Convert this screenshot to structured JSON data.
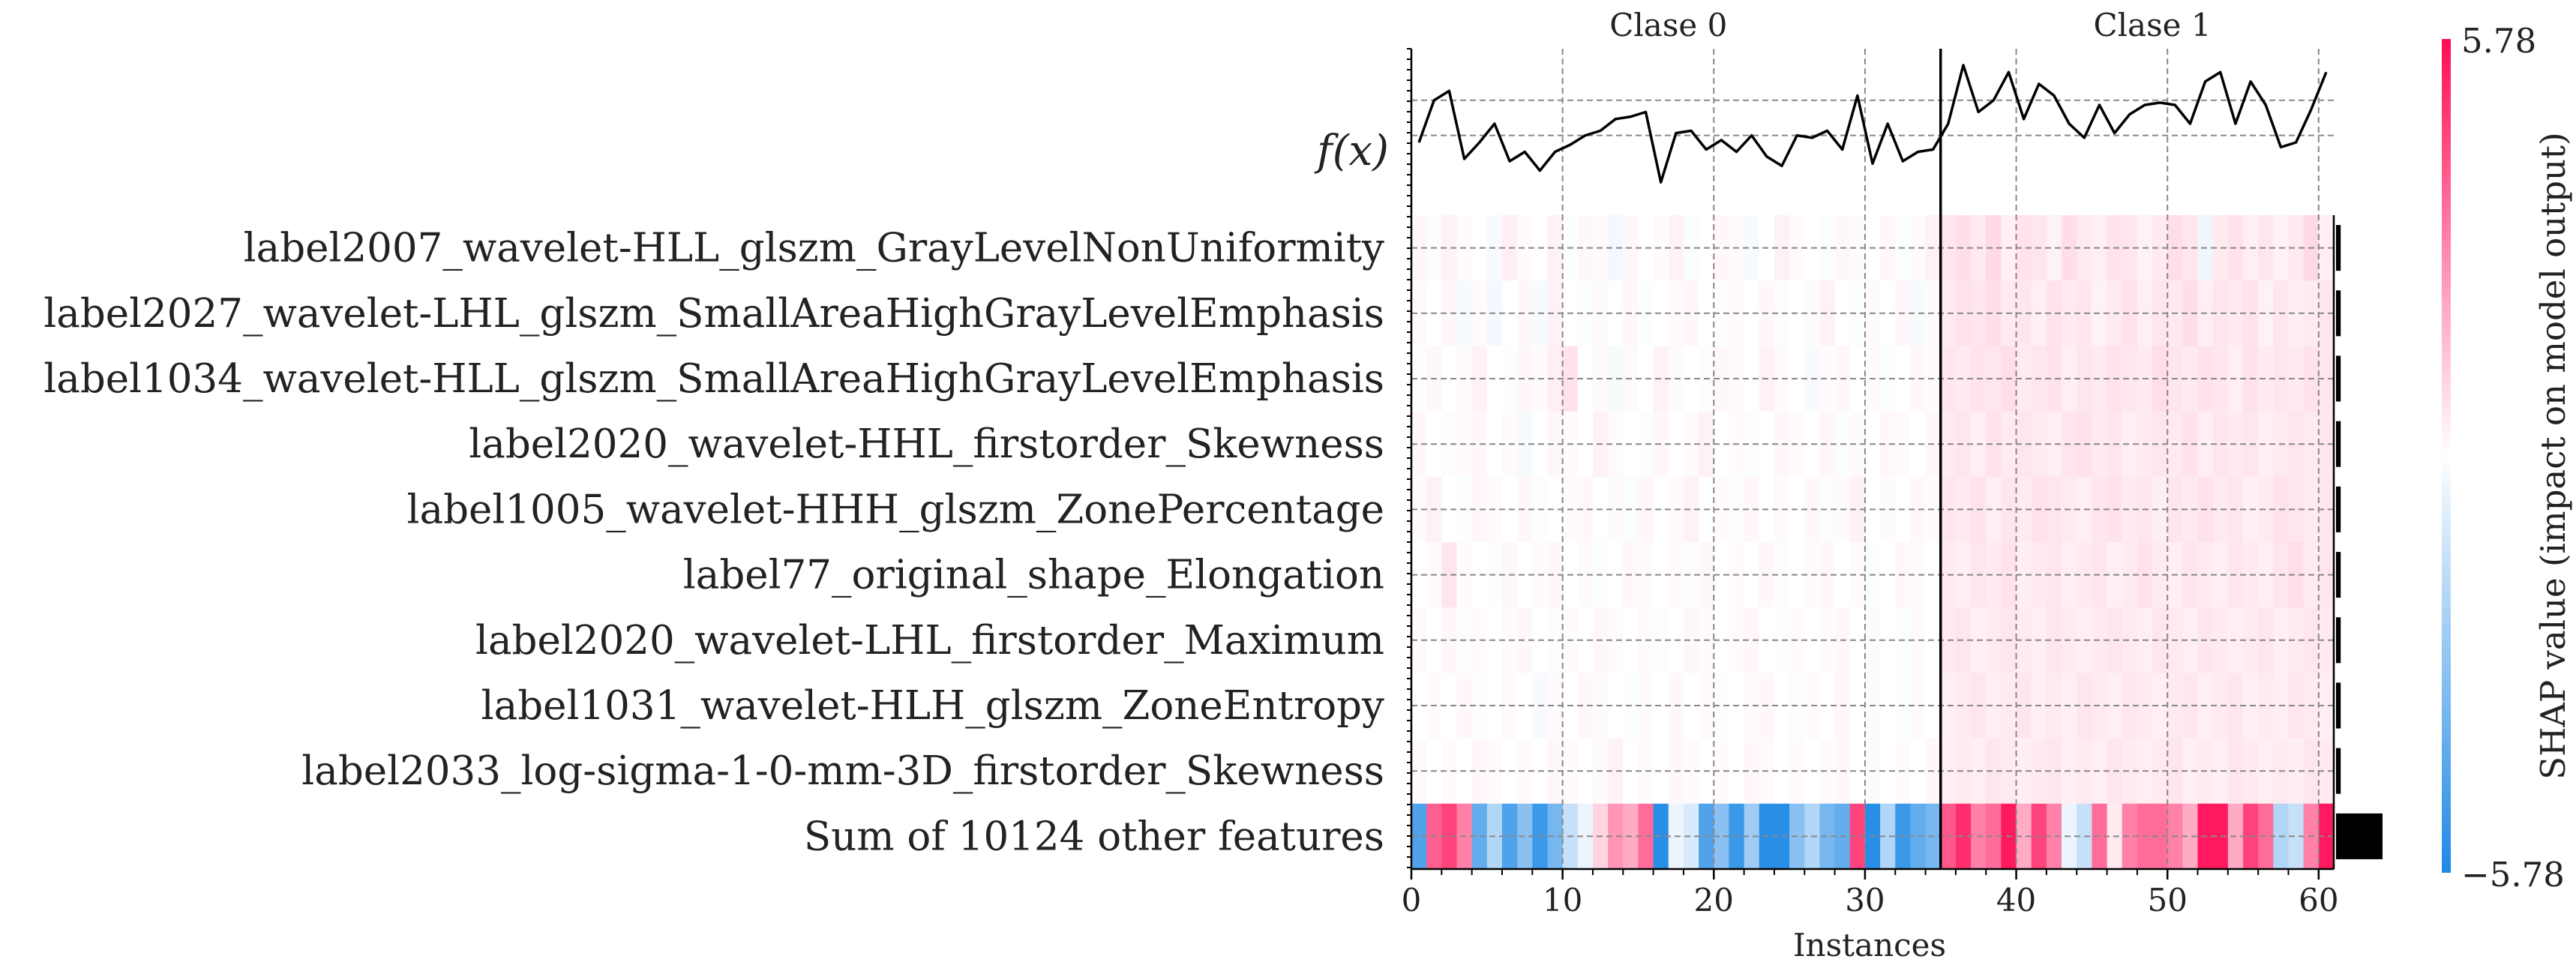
{
  "chart_data": {
    "type": "heatmap",
    "xlabel": "Instances",
    "ylabel": "",
    "x_ticks": [
      0,
      10,
      20,
      30,
      40,
      50,
      60
    ],
    "xlim": [
      0,
      61
    ],
    "class_labels": [
      {
        "label": "Clase 0",
        "center": 17
      },
      {
        "label": "Clase 1",
        "center": 49
      }
    ],
    "class_boundary": 35,
    "fx_label": "f(x)",
    "features": [
      "label2007_wavelet-HLL_glszm_GrayLevelNonUniformity",
      "label2027_wavelet-LHL_glszm_SmallAreaHighGrayLevelEmphasis",
      "label1034_wavelet-HLL_glszm_SmallAreaHighGrayLevelEmphasis",
      "label2020_wavelet-HHL_firstorder_Skewness",
      "label1005_wavelet-HHH_glszm_ZonePercentage",
      "label77_original_shape_Elongation",
      "label2020_wavelet-LHL_firstorder_Maximum",
      "label1031_wavelet-HLH_glszm_ZoneEntropy",
      "label2033_log-sigma-1-0-mm-3D_firstorder_Skewness",
      "Sum of 10124 other features"
    ],
    "fx_values": [
      0.2,
      2.0,
      2.4,
      -0.5,
      0.2,
      1.0,
      -0.6,
      -0.2,
      -1.0,
      -0.2,
      0.1,
      0.5,
      0.7,
      1.2,
      1.3,
      1.5,
      -1.5,
      0.6,
      0.7,
      -0.1,
      0.3,
      -0.2,
      0.5,
      -0.4,
      -0.8,
      0.5,
      0.4,
      0.7,
      -0.1,
      2.2,
      -0.7,
      1.0,
      -0.6,
      -0.2,
      -0.1,
      1.0,
      3.5,
      1.5,
      2.0,
      3.2,
      1.2,
      2.7,
      2.2,
      1.0,
      0.4,
      1.8,
      0.6,
      1.4,
      1.8,
      1.9,
      1.8,
      1.0,
      2.8,
      3.2,
      1.0,
      2.8,
      1.8,
      0.0,
      0.2,
      1.6,
      3.2
    ],
    "fx_range": [
      -2.2,
      4.2
    ],
    "matrix_rows": [
      [
        0.2,
        -0.1,
        0.3,
        0.1,
        0.0,
        -0.2,
        0.4,
        0.1,
        0.0,
        0.3,
        -0.1,
        0.2,
        0.1,
        -0.3,
        0.2,
        0.0,
        0.1,
        0.3,
        -0.1,
        0.0,
        0.2,
        0.1,
        -0.2,
        0.0,
        0.3,
        0.1,
        0.0,
        -0.1,
        0.2,
        0.1,
        0.0,
        0.2,
        -0.1,
        0.1,
        0.3,
        0.6,
        0.8,
        0.5,
        0.9,
        0.4,
        0.7,
        0.6,
        0.3,
        0.8,
        0.5,
        0.4,
        0.7,
        0.6,
        0.3,
        0.5,
        0.8,
        0.6,
        -0.4,
        0.5,
        0.7,
        0.4,
        0.6,
        0.3,
        0.5,
        0.9,
        0.4
      ],
      [
        0.1,
        0.0,
        0.2,
        -0.2,
        0.1,
        -0.3,
        0.0,
        0.2,
        -0.2,
        0.3,
        0.0,
        -0.1,
        0.1,
        0.0,
        0.2,
        -0.1,
        0.0,
        0.1,
        0.2,
        0.0,
        -0.1,
        0.1,
        0.0,
        0.2,
        -0.1,
        0.0,
        0.1,
        0.3,
        0.0,
        -0.1,
        0.1,
        0.0,
        0.2,
        -0.2,
        0.1,
        0.5,
        0.7,
        0.6,
        0.8,
        0.5,
        0.6,
        0.4,
        0.7,
        0.5,
        0.6,
        0.3,
        0.5,
        0.7,
        0.4,
        0.6,
        0.5,
        0.8,
        0.4,
        0.6,
        0.5,
        0.7,
        0.3,
        0.6,
        0.4,
        0.5,
        0.6
      ],
      [
        -0.1,
        0.2,
        0.0,
        0.1,
        0.3,
        0.0,
        -0.1,
        0.2,
        0.1,
        0.4,
        0.7,
        0.0,
        0.1,
        -0.2,
        0.1,
        0.0,
        0.3,
        0.1,
        0.0,
        -0.1,
        0.2,
        0.1,
        0.0,
        0.3,
        0.1,
        0.0,
        -0.2,
        0.1,
        0.2,
        0.0,
        0.1,
        -0.1,
        0.0,
        0.2,
        0.1,
        0.6,
        0.5,
        0.7,
        0.6,
        0.8,
        0.5,
        0.6,
        0.7,
        0.4,
        0.6,
        0.5,
        0.7,
        0.6,
        0.5,
        0.8,
        0.6,
        0.5,
        0.7,
        0.6,
        0.4,
        0.7,
        0.5,
        0.6,
        0.5,
        0.7,
        0.6
      ],
      [
        0.2,
        0.0,
        -0.1,
        0.1,
        0.2,
        0.0,
        0.1,
        -0.2,
        0.0,
        0.2,
        0.1,
        0.0,
        0.3,
        0.1,
        0.0,
        -0.1,
        0.2,
        0.0,
        0.1,
        0.3,
        0.0,
        0.1,
        -0.1,
        0.0,
        0.2,
        0.1,
        0.0,
        0.2,
        -0.1,
        0.1,
        0.0,
        0.2,
        0.1,
        0.0,
        0.2,
        0.5,
        0.6,
        0.4,
        0.7,
        0.5,
        0.6,
        0.5,
        0.4,
        0.6,
        0.7,
        0.5,
        0.6,
        0.4,
        0.5,
        0.6,
        0.5,
        0.7,
        0.4,
        0.6,
        0.5,
        0.6,
        0.4,
        0.5,
        0.6,
        0.5,
        0.6
      ],
      [
        0.1,
        0.3,
        0.0,
        -0.1,
        0.2,
        0.1,
        0.0,
        0.2,
        -0.1,
        0.0,
        0.1,
        0.2,
        0.0,
        0.1,
        -0.1,
        0.2,
        0.0,
        0.1,
        0.3,
        0.0,
        0.1,
        -0.1,
        0.2,
        0.0,
        0.1,
        0.0,
        0.2,
        -0.1,
        0.1,
        0.3,
        0.0,
        0.1,
        0.0,
        0.2,
        0.1,
        0.6,
        0.5,
        0.7,
        0.4,
        0.6,
        0.5,
        0.7,
        0.6,
        0.5,
        0.4,
        0.6,
        0.7,
        0.5,
        0.6,
        0.4,
        0.6,
        0.5,
        0.7,
        0.5,
        0.6,
        0.4,
        0.5,
        0.7,
        0.6,
        0.5,
        0.6
      ],
      [
        0.0,
        0.1,
        0.6,
        0.1,
        0.0,
        -0.1,
        0.2,
        0.0,
        0.1,
        0.2,
        0.0,
        0.1,
        -0.1,
        0.0,
        0.2,
        0.1,
        0.0,
        0.1,
        -0.1,
        0.2,
        0.0,
        0.1,
        0.0,
        0.2,
        -0.1,
        0.0,
        0.1,
        0.2,
        0.0,
        0.1,
        -0.1,
        0.0,
        0.2,
        0.1,
        0.0,
        0.5,
        0.4,
        0.6,
        0.5,
        0.7,
        0.4,
        0.5,
        0.6,
        0.4,
        0.5,
        0.6,
        0.4,
        0.5,
        0.7,
        0.5,
        0.4,
        0.6,
        0.5,
        0.4,
        0.6,
        0.5,
        0.4,
        0.6,
        0.8,
        0.5,
        0.6
      ],
      [
        0.1,
        0.0,
        0.2,
        -0.1,
        0.1,
        0.0,
        0.1,
        0.2,
        0.0,
        -0.1,
        0.1,
        0.0,
        0.2,
        0.1,
        0.0,
        0.1,
        -0.1,
        0.0,
        0.2,
        0.1,
        0.0,
        0.1,
        0.2,
        0.0,
        -0.1,
        0.1,
        0.0,
        0.1,
        0.2,
        0.0,
        0.1,
        0.0,
        -0.1,
        0.1,
        0.0,
        0.5,
        0.6,
        0.4,
        0.5,
        0.6,
        0.5,
        0.4,
        0.6,
        0.5,
        0.4,
        0.5,
        0.6,
        0.5,
        0.4,
        0.6,
        0.5,
        0.4,
        0.6,
        0.5,
        0.4,
        0.5,
        0.6,
        0.4,
        0.5,
        0.6,
        0.5
      ],
      [
        0.0,
        0.1,
        0.0,
        0.2,
        -0.1,
        0.0,
        0.1,
        0.0,
        -0.2,
        0.1,
        0.0,
        0.2,
        0.1,
        0.0,
        -0.1,
        0.1,
        0.0,
        0.2,
        0.0,
        0.1,
        -0.1,
        0.0,
        0.1,
        0.2,
        0.0,
        -0.1,
        0.1,
        0.0,
        0.2,
        0.0,
        0.1,
        0.0,
        -0.1,
        0.1,
        0.0,
        0.4,
        0.5,
        0.6,
        0.4,
        0.5,
        0.6,
        0.4,
        0.5,
        0.4,
        0.6,
        0.5,
        0.4,
        0.6,
        0.5,
        0.4,
        0.5,
        0.6,
        0.4,
        0.5,
        0.6,
        0.4,
        0.5,
        0.4,
        0.6,
        0.5,
        0.4
      ],
      [
        0.1,
        0.0,
        0.1,
        0.0,
        0.2,
        0.1,
        0.0,
        0.1,
        0.0,
        0.2,
        0.1,
        0.0,
        0.1,
        0.3,
        0.0,
        0.1,
        0.0,
        0.2,
        0.1,
        0.0,
        0.1,
        0.0,
        0.2,
        0.1,
        0.0,
        0.1,
        0.0,
        0.1,
        0.2,
        0.0,
        0.1,
        0.0,
        0.1,
        0.0,
        0.2,
        0.4,
        0.5,
        0.4,
        0.6,
        0.5,
        0.4,
        0.5,
        0.6,
        0.4,
        0.5,
        0.4,
        0.6,
        0.5,
        0.4,
        0.5,
        0.6,
        0.4,
        0.5,
        0.4,
        0.6,
        0.5,
        0.4,
        0.5,
        0.4,
        0.6,
        0.5
      ],
      [
        -4.5,
        3.8,
        4.5,
        3.0,
        -4.0,
        -2.0,
        -4.5,
        -3.0,
        -5.0,
        -3.5,
        -1.5,
        -0.5,
        1.0,
        2.5,
        2.0,
        3.5,
        -5.5,
        -0.5,
        -1.0,
        -4.5,
        -3.0,
        -5.0,
        -2.5,
        -5.5,
        -5.5,
        -3.0,
        -2.0,
        -3.5,
        -4.0,
        4.5,
        -5.5,
        -2.0,
        -5.0,
        -4.0,
        -3.5,
        4.0,
        5.0,
        3.0,
        3.5,
        5.5,
        2.0,
        4.5,
        3.0,
        -0.5,
        -1.5,
        3.5,
        0.5,
        3.0,
        3.5,
        3.5,
        3.0,
        2.0,
        5.5,
        5.5,
        2.0,
        4.5,
        3.5,
        -2.0,
        -1.5,
        3.0,
        5.5
      ]
    ],
    "row_importance": [
      0.3,
      0.3,
      0.3,
      0.3,
      0.3,
      0.3,
      0.3,
      0.3,
      0.3,
      3.0
    ],
    "colorbar": {
      "label": "SHAP value (impact on model output)",
      "max_label": "5.78",
      "min_label": "−5.78",
      "vmax": 5.78,
      "vmin": -5.78
    },
    "colors": {
      "positive": "#ff0d57",
      "neutral": "#ffffff",
      "negative": "#1e88e5",
      "line": "#000000",
      "grid": "#888888"
    },
    "grid": true
  }
}
